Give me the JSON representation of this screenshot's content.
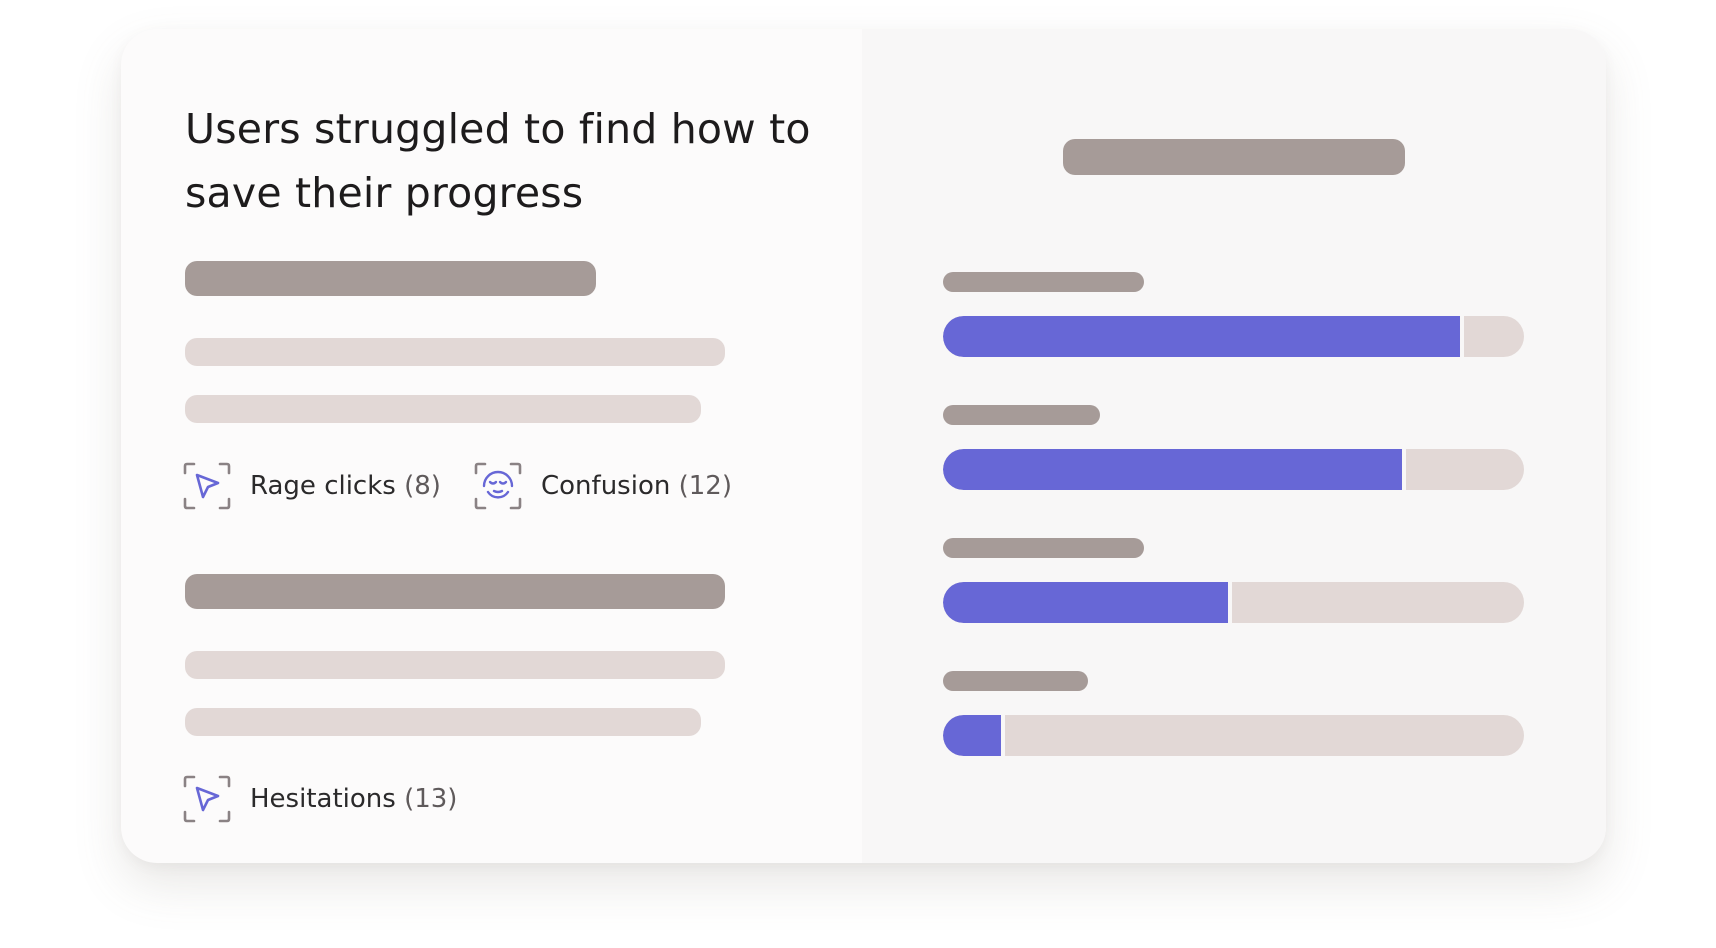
{
  "insight": {
    "title": "Users struggled to find how to save their progress"
  },
  "signals": [
    {
      "label": "Rage clicks",
      "count": "(8)",
      "icon": "cursor-arrow-icon"
    },
    {
      "label": "Confusion",
      "count": "(12)",
      "icon": "confused-face-icon"
    },
    {
      "label": "Hesitations",
      "count": "(13)",
      "icon": "cursor-arrow-icon"
    }
  ],
  "progress_bars": [
    {
      "fraction": 0.89
    },
    {
      "fraction": 0.79
    },
    {
      "fraction": 0.49
    },
    {
      "fraction": 0.1
    }
  ],
  "colors": {
    "accent": "#6767d6",
    "placeholder_dark": "#a69b98",
    "placeholder_light": "#e2d8d6",
    "icon_frame": "#8a8284"
  }
}
